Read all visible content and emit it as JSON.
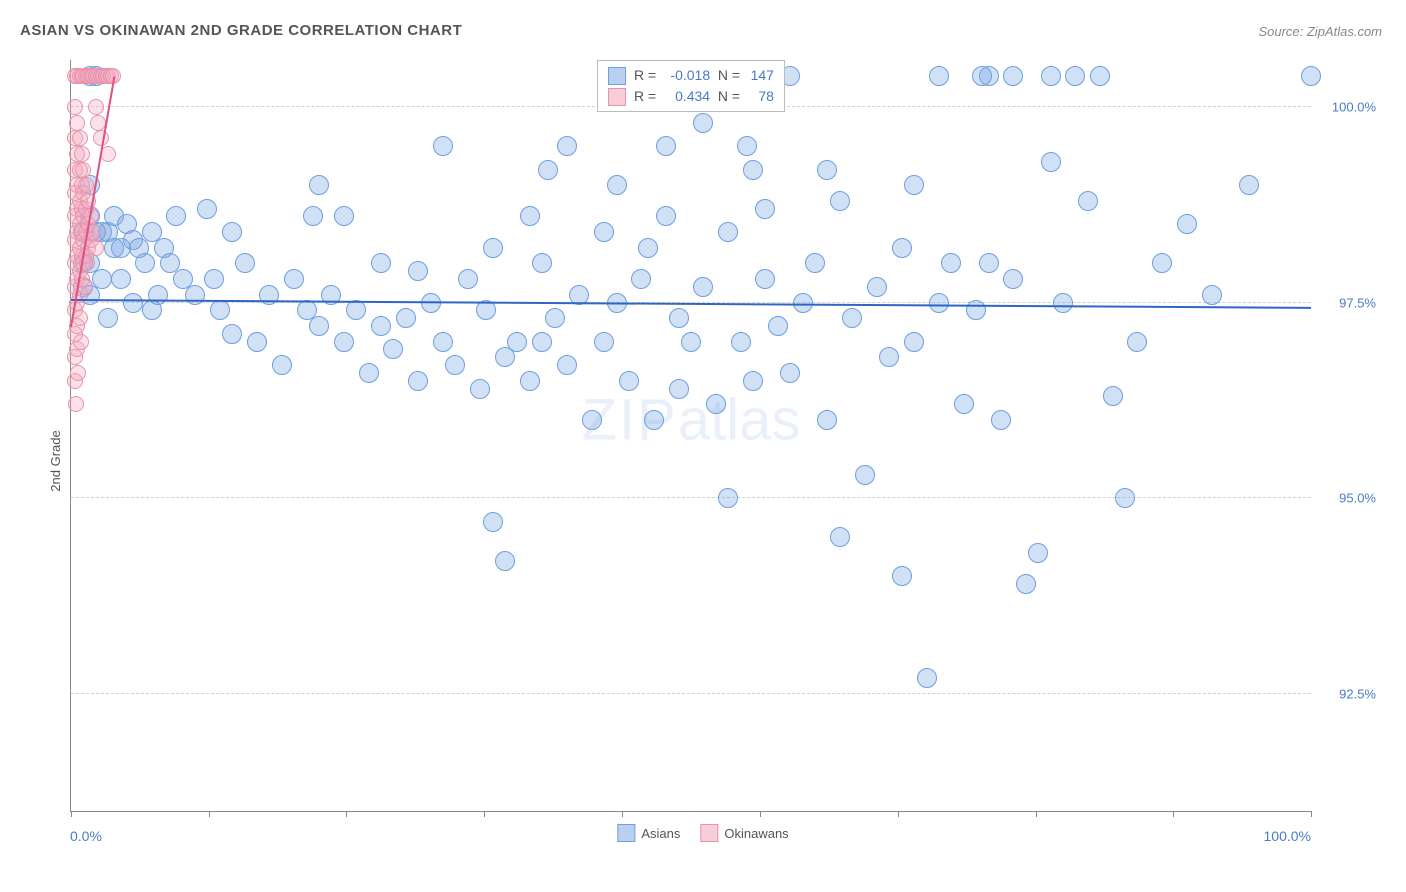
{
  "title": "ASIAN VS OKINAWAN 2ND GRADE CORRELATION CHART",
  "source": "Source: ZipAtlas.com",
  "watermark": {
    "bold": "ZIP",
    "rest": "atlas"
  },
  "chart": {
    "type": "scatter",
    "yaxis_title": "2nd Grade",
    "xlim": [
      0,
      100
    ],
    "ylim": [
      91.0,
      100.6
    ],
    "xticks": [
      0,
      11.1,
      22.2,
      33.3,
      44.4,
      55.6,
      66.7,
      77.8,
      88.9,
      100
    ],
    "yticks": [
      {
        "v": 100.0,
        "label": "100.0%"
      },
      {
        "v": 97.5,
        "label": "97.5%"
      },
      {
        "v": 95.0,
        "label": "95.0%"
      },
      {
        "v": 92.5,
        "label": "92.5%"
      }
    ],
    "x_min_label": "0.0%",
    "x_max_label": "100.0%",
    "grid_color": "#d0d0d0",
    "background_color": "#ffffff",
    "series": [
      {
        "name": "Asians",
        "fill": "rgba(120,165,226,0.35)",
        "stroke": "#6f9fe0",
        "marker_r": 9,
        "legend_swatch_fill": "#b9d0f0",
        "legend_swatch_border": "#6f9fe0",
        "trend": {
          "x1": 0,
          "y1": 97.55,
          "x2": 100,
          "y2": 97.45,
          "color": "#2f66c4",
          "width": 2
        },
        "corr": {
          "R": "-0.018",
          "N": "147"
        },
        "points": [
          [
            1.0,
            98.4
          ],
          [
            1.0,
            97.7
          ],
          [
            1.0,
            98.0
          ],
          [
            1.5,
            100.4
          ],
          [
            1.5,
            99.0
          ],
          [
            1.5,
            98.6
          ],
          [
            1.5,
            98.0
          ],
          [
            1.5,
            97.6
          ],
          [
            2.0,
            98.4
          ],
          [
            2.0,
            100.4
          ],
          [
            2.5,
            98.4
          ],
          [
            2.5,
            97.8
          ],
          [
            3.0,
            98.4
          ],
          [
            3.0,
            97.3
          ],
          [
            3.5,
            98.2
          ],
          [
            3.5,
            98.6
          ],
          [
            4.0,
            98.2
          ],
          [
            4.0,
            97.8
          ],
          [
            4.5,
            98.5
          ],
          [
            5.0,
            98.3
          ],
          [
            5.0,
            97.5
          ],
          [
            5.5,
            98.2
          ],
          [
            6.0,
            98.0
          ],
          [
            6.5,
            98.4
          ],
          [
            7.0,
            97.6
          ],
          [
            7.5,
            98.2
          ],
          [
            8.0,
            98.0
          ],
          [
            9.0,
            97.8
          ],
          [
            10.0,
            97.6
          ],
          [
            11.0,
            98.7
          ],
          [
            12.0,
            97.4
          ],
          [
            13.0,
            98.4
          ],
          [
            13.0,
            97.1
          ],
          [
            14.0,
            98.0
          ],
          [
            15.0,
            97.0
          ],
          [
            16.0,
            97.6
          ],
          [
            17.0,
            96.7
          ],
          [
            18.0,
            97.8
          ],
          [
            19.0,
            97.4
          ],
          [
            20.0,
            99.0
          ],
          [
            20.0,
            97.2
          ],
          [
            21.0,
            97.6
          ],
          [
            22.0,
            98.6
          ],
          [
            22.0,
            97.0
          ],
          [
            23.0,
            97.4
          ],
          [
            24.0,
            96.6
          ],
          [
            25.0,
            97.2
          ],
          [
            25.0,
            98.0
          ],
          [
            26.0,
            96.9
          ],
          [
            27.0,
            97.3
          ],
          [
            28.0,
            97.9
          ],
          [
            28.0,
            96.5
          ],
          [
            29.0,
            97.5
          ],
          [
            30.0,
            99.5
          ],
          [
            30.0,
            97.0
          ],
          [
            31.0,
            96.7
          ],
          [
            32.0,
            97.8
          ],
          [
            33.0,
            96.4
          ],
          [
            34.0,
            98.2
          ],
          [
            34.0,
            94.7
          ],
          [
            35.0,
            96.8
          ],
          [
            35.0,
            94.2
          ],
          [
            36.0,
            97.0
          ],
          [
            37.0,
            98.6
          ],
          [
            37.0,
            96.5
          ],
          [
            38.0,
            98.0
          ],
          [
            38.0,
            97.0
          ],
          [
            39.0,
            97.3
          ],
          [
            40.0,
            99.5
          ],
          [
            40.0,
            96.7
          ],
          [
            41.0,
            97.6
          ],
          [
            42.0,
            96.0
          ],
          [
            43.0,
            98.4
          ],
          [
            43.0,
            97.0
          ],
          [
            44.0,
            97.5
          ],
          [
            44.0,
            99.0
          ],
          [
            45.0,
            96.5
          ],
          [
            46.0,
            97.8
          ],
          [
            47.0,
            96.0
          ],
          [
            48.0,
            98.6
          ],
          [
            48.0,
            99.5
          ],
          [
            49.0,
            97.3
          ],
          [
            49.0,
            96.4
          ],
          [
            50.0,
            97.0
          ],
          [
            51.0,
            99.8
          ],
          [
            51.0,
            97.7
          ],
          [
            52.0,
            96.2
          ],
          [
            53.0,
            95.0
          ],
          [
            53.0,
            98.4
          ],
          [
            54.0,
            97.0
          ],
          [
            55.0,
            99.2
          ],
          [
            55.0,
            96.5
          ],
          [
            56.0,
            97.8
          ],
          [
            56.0,
            98.7
          ],
          [
            57.0,
            97.2
          ],
          [
            58.0,
            100.4
          ],
          [
            58.0,
            96.6
          ],
          [
            59.0,
            97.5
          ],
          [
            60.0,
            98.0
          ],
          [
            61.0,
            99.2
          ],
          [
            61.0,
            96.0
          ],
          [
            62.0,
            98.8
          ],
          [
            62.0,
            94.5
          ],
          [
            63.0,
            97.3
          ],
          [
            64.0,
            95.3
          ],
          [
            65.0,
            97.7
          ],
          [
            66.0,
            96.8
          ],
          [
            67.0,
            98.2
          ],
          [
            67.0,
            94.0
          ],
          [
            68.0,
            99.0
          ],
          [
            68.0,
            97.0
          ],
          [
            69.0,
            92.7
          ],
          [
            70.0,
            97.5
          ],
          [
            70.0,
            100.4
          ],
          [
            71.0,
            98.0
          ],
          [
            72.0,
            96.2
          ],
          [
            73.0,
            97.4
          ],
          [
            74.0,
            100.4
          ],
          [
            74.0,
            98.0
          ],
          [
            75.0,
            96.0
          ],
          [
            76.0,
            100.4
          ],
          [
            76.0,
            97.8
          ],
          [
            77.0,
            93.9
          ],
          [
            78.0,
            94.3
          ],
          [
            79.0,
            99.3
          ],
          [
            79.0,
            100.4
          ],
          [
            80.0,
            97.5
          ],
          [
            81.0,
            100.4
          ],
          [
            82.0,
            98.8
          ],
          [
            83.0,
            100.4
          ],
          [
            84.0,
            96.3
          ],
          [
            85.0,
            95.0
          ],
          [
            86.0,
            97.0
          ],
          [
            88.0,
            98.0
          ],
          [
            90.0,
            98.5
          ],
          [
            92.0,
            97.6
          ],
          [
            95.0,
            99.0
          ],
          [
            100.0,
            100.4
          ],
          [
            73.5,
            100.4
          ],
          [
            38.5,
            99.2
          ],
          [
            46.5,
            98.2
          ],
          [
            54.5,
            99.5
          ],
          [
            33.5,
            97.4
          ],
          [
            19.5,
            98.6
          ],
          [
            11.5,
            97.8
          ],
          [
            6.5,
            97.4
          ],
          [
            8.5,
            98.6
          ]
        ]
      },
      {
        "name": "Okinawans",
        "fill": "rgba(245,170,190,0.35)",
        "stroke": "#e694ab",
        "marker_r": 7,
        "legend_swatch_fill": "#f7cdd8",
        "legend_swatch_border": "#e694ab",
        "trend": {
          "x1": 0,
          "y1": 97.2,
          "x2": 3.5,
          "y2": 100.4,
          "color": "#e05080",
          "width": 2
        },
        "corr": {
          "R": "0.434",
          "N": "78"
        },
        "points": [
          [
            0.3,
            100.4
          ],
          [
            0.3,
            100.0
          ],
          [
            0.3,
            99.6
          ],
          [
            0.3,
            99.2
          ],
          [
            0.3,
            98.9
          ],
          [
            0.3,
            98.6
          ],
          [
            0.3,
            98.3
          ],
          [
            0.3,
            98.0
          ],
          [
            0.3,
            97.7
          ],
          [
            0.3,
            97.4
          ],
          [
            0.3,
            97.1
          ],
          [
            0.3,
            96.8
          ],
          [
            0.3,
            96.5
          ],
          [
            0.5,
            100.4
          ],
          [
            0.5,
            99.8
          ],
          [
            0.5,
            99.4
          ],
          [
            0.5,
            99.0
          ],
          [
            0.5,
            98.7
          ],
          [
            0.5,
            98.4
          ],
          [
            0.5,
            98.1
          ],
          [
            0.5,
            97.8
          ],
          [
            0.5,
            97.5
          ],
          [
            0.5,
            97.2
          ],
          [
            0.5,
            96.9
          ],
          [
            0.7,
            100.4
          ],
          [
            0.7,
            99.6
          ],
          [
            0.7,
            99.2
          ],
          [
            0.7,
            98.8
          ],
          [
            0.7,
            98.5
          ],
          [
            0.7,
            98.2
          ],
          [
            0.7,
            97.9
          ],
          [
            0.7,
            97.6
          ],
          [
            0.7,
            97.3
          ],
          [
            0.9,
            100.4
          ],
          [
            0.9,
            99.4
          ],
          [
            0.9,
            99.0
          ],
          [
            0.9,
            98.7
          ],
          [
            0.9,
            98.4
          ],
          [
            0.9,
            98.1
          ],
          [
            0.9,
            97.8
          ],
          [
            1.0,
            100.4
          ],
          [
            1.0,
            99.2
          ],
          [
            1.0,
            98.9
          ],
          [
            1.0,
            98.6
          ],
          [
            1.0,
            98.3
          ],
          [
            1.0,
            98.0
          ],
          [
            1.2,
            100.4
          ],
          [
            1.2,
            99.0
          ],
          [
            1.2,
            98.7
          ],
          [
            1.2,
            98.4
          ],
          [
            1.2,
            98.1
          ],
          [
            1.4,
            100.4
          ],
          [
            1.4,
            98.8
          ],
          [
            1.4,
            98.5
          ],
          [
            1.4,
            98.2
          ],
          [
            1.6,
            100.4
          ],
          [
            1.6,
            98.6
          ],
          [
            1.6,
            98.3
          ],
          [
            1.8,
            100.4
          ],
          [
            1.8,
            98.4
          ],
          [
            2.0,
            100.4
          ],
          [
            2.0,
            98.2
          ],
          [
            2.0,
            100.0
          ],
          [
            2.2,
            100.4
          ],
          [
            2.2,
            99.8
          ],
          [
            2.4,
            100.4
          ],
          [
            2.4,
            99.6
          ],
          [
            2.6,
            100.4
          ],
          [
            2.8,
            100.4
          ],
          [
            3.0,
            100.4
          ],
          [
            3.0,
            99.4
          ],
          [
            3.2,
            100.4
          ],
          [
            3.4,
            100.4
          ],
          [
            0.4,
            96.2
          ],
          [
            0.6,
            96.6
          ],
          [
            0.8,
            97.0
          ],
          [
            1.1,
            97.7
          ],
          [
            1.3,
            98.0
          ]
        ]
      }
    ],
    "legend_bottom": [
      {
        "label": "Asians",
        "series": 0
      },
      {
        "label": "Okinawans",
        "series": 1
      }
    ]
  }
}
